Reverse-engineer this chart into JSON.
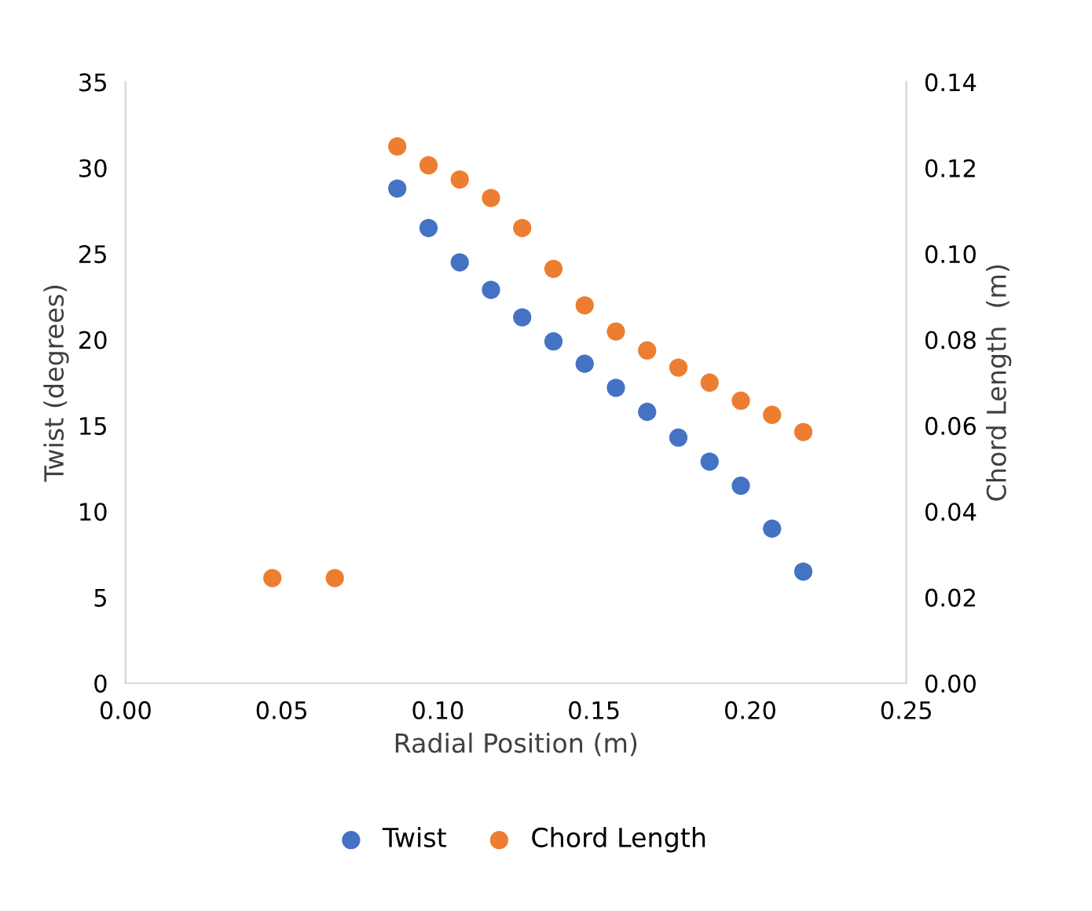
{
  "chart_data": {
    "type": "scatter",
    "xlabel": "Radial Position (m)",
    "ylabel": "Twist (degrees)",
    "y2label": "Chord Length  (m)",
    "xlim": [
      0,
      0.25
    ],
    "xticks": [
      {
        "value": 0,
        "label": "0.00"
      },
      {
        "value": 0.05,
        "label": "0.05"
      },
      {
        "value": 0.1,
        "label": "0.10"
      },
      {
        "value": 0.15,
        "label": "0.15"
      },
      {
        "value": 0.2,
        "label": "0.20"
      },
      {
        "value": 0.25,
        "label": "0.25"
      }
    ],
    "ylim": [
      0,
      35
    ],
    "yticks": [
      0,
      5,
      10,
      15,
      20,
      25,
      30,
      35
    ],
    "y2lim": [
      0,
      0.14
    ],
    "y2ticks": [
      {
        "value": 0,
        "label": "0.00"
      },
      {
        "value": 0.02,
        "label": "0.02"
      },
      {
        "value": 0.04,
        "label": "0.04"
      },
      {
        "value": 0.06,
        "label": "0.06"
      },
      {
        "value": 0.08,
        "label": "0.08"
      },
      {
        "value": 0.1,
        "label": "0.10"
      },
      {
        "value": 0.12,
        "label": "0.12"
      },
      {
        "value": 0.14,
        "label": "0.14"
      }
    ],
    "series": [
      {
        "name": "Twist",
        "color": "#4472c4",
        "x": [
          0.087,
          0.097,
          0.107,
          0.117,
          0.127,
          0.137,
          0.147,
          0.157,
          0.167,
          0.177,
          0.187,
          0.197,
          0.207,
          0.217
        ],
        "values": [
          28.8,
          26.5,
          24.5,
          22.9,
          21.3,
          19.9,
          18.6,
          17.2,
          15.8,
          14.3,
          12.9,
          11.5,
          9.0,
          6.5
        ]
      },
      {
        "name": "Chord Length",
        "color": "#ed7d31",
        "axis": "y2",
        "x": [
          0.047,
          0.067,
          0.087,
          0.097,
          0.107,
          0.117,
          0.127,
          0.137,
          0.147,
          0.157,
          0.167,
          0.177,
          0.187,
          0.197,
          0.207,
          0.217
        ],
        "values": [
          0.0245,
          0.0245,
          0.125,
          0.1206,
          0.1173,
          0.113,
          0.106,
          0.0965,
          0.088,
          0.0819,
          0.0775,
          0.0735,
          0.07,
          0.0658,
          0.0625,
          0.0585
        ]
      }
    ],
    "marker": "circle",
    "legend": "bottom",
    "grid": false
  }
}
